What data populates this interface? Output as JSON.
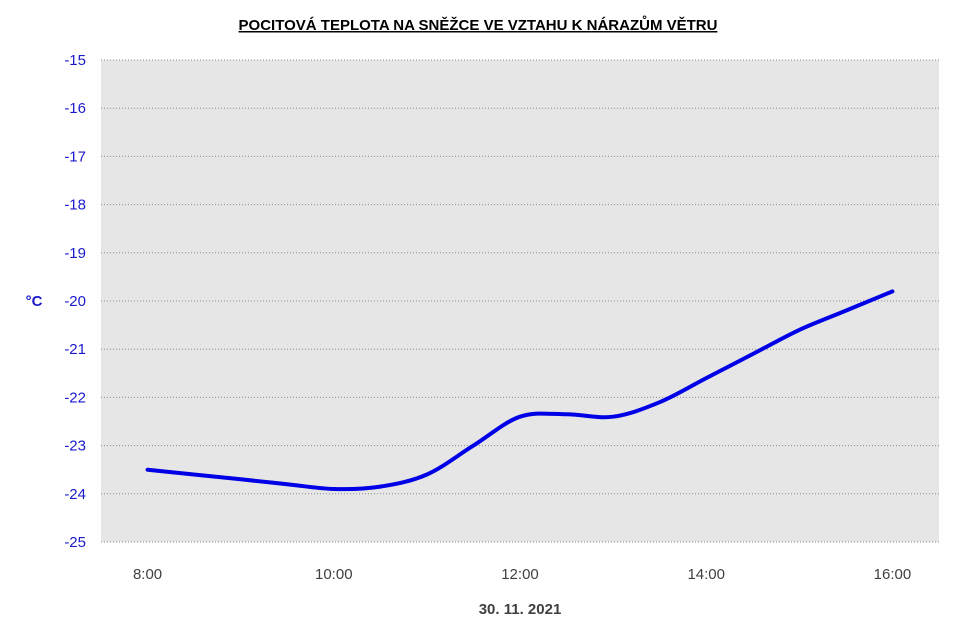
{
  "chart_data": {
    "type": "line",
    "title": "POCITOVÁ TEPLOTA  NA SNĚŽCE VE VZTAHU K NÁRAZŮM VĚTRU",
    "xlabel": "30. 11. 2021",
    "ylabel": "°C",
    "x_ticks": [
      "8:00",
      "10:00",
      "12:00",
      "14:00",
      "16:00"
    ],
    "x_tick_values": [
      8,
      10,
      12,
      14,
      16
    ],
    "y_ticks": [
      "-15",
      "-16",
      "-17",
      "-18",
      "-19",
      "-20",
      "-21",
      "-22",
      "-23",
      "-24",
      "-25"
    ],
    "xlim": [
      7.5,
      16.5
    ],
    "ylim": [
      -25,
      -15
    ],
    "grid": true,
    "line_color": "#0000e6",
    "plot_background": "#e6e6e6",
    "series": [
      {
        "x": [
          8,
          9,
          9.5,
          10,
          10.5,
          11,
          11.5,
          12,
          12.5,
          13,
          13.5,
          14,
          14.5,
          15,
          15.5,
          16
        ],
        "values": [
          -23.5,
          -23.7,
          -23.8,
          -23.9,
          -23.85,
          -23.6,
          -23.0,
          -22.4,
          -22.35,
          -22.4,
          -22.1,
          -21.6,
          -21.1,
          -20.6,
          -20.2,
          -19.8
        ]
      }
    ]
  }
}
